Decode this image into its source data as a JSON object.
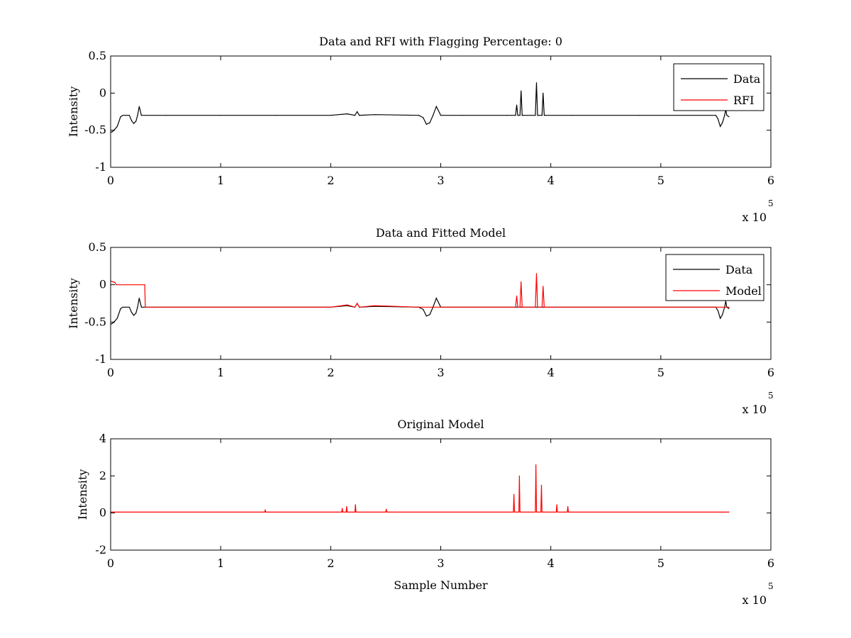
{
  "figure": {
    "background": "#ffffff",
    "axes_color": "#000000"
  },
  "chart_data": [
    {
      "type": "line",
      "title": "Data and RFI with Flagging Percentage: 0",
      "xlabel": "",
      "ylabel": "Intensity",
      "xlim": [
        0,
        600000
      ],
      "ylim": [
        -1,
        0.5
      ],
      "x_ticks": [
        0,
        100000,
        200000,
        300000,
        400000,
        500000,
        600000
      ],
      "x_tick_labels": [
        "0",
        "1",
        "2",
        "3",
        "4",
        "5",
        "6"
      ],
      "y_ticks": [
        -1,
        -0.5,
        0,
        0.5
      ],
      "y_tick_labels": [
        "-1",
        "-0.5",
        "0",
        "0.5"
      ],
      "x_multiplier": {
        "base": "x 10",
        "exponent": "5"
      },
      "grid": false,
      "legend": {
        "location": "top-right",
        "entries": [
          "Data",
          "RFI"
        ]
      },
      "series": [
        {
          "name": "Data",
          "color": "#000000",
          "x": [
            0,
            1500,
            3000,
            6000,
            9000,
            11000,
            14000,
            17000,
            19000,
            21000,
            23000,
            24500,
            26000,
            28000,
            50000,
            100000,
            150000,
            200000,
            215000,
            222000,
            224000,
            226000,
            240000,
            280000,
            284000,
            287000,
            290000,
            293000,
            296000,
            300000,
            320000,
            360000,
            368000,
            369000,
            370000,
            372000,
            373000,
            374000,
            375000,
            386000,
            387000,
            388000,
            389000,
            392000,
            393000,
            394000,
            395000,
            420000,
            480000,
            550000,
            552000,
            554000,
            556000,
            558000,
            559000,
            560000,
            562000
          ],
          "y": [
            -0.53,
            -0.52,
            -0.5,
            -0.45,
            -0.32,
            -0.3,
            -0.3,
            -0.3,
            -0.37,
            -0.41,
            -0.38,
            -0.3,
            -0.18,
            -0.3,
            -0.3,
            -0.3,
            -0.3,
            -0.3,
            -0.28,
            -0.3,
            -0.25,
            -0.3,
            -0.29,
            -0.3,
            -0.33,
            -0.42,
            -0.4,
            -0.3,
            -0.18,
            -0.3,
            -0.3,
            -0.3,
            -0.3,
            -0.16,
            -0.3,
            -0.3,
            0.03,
            -0.3,
            -0.3,
            -0.3,
            0.14,
            -0.3,
            -0.3,
            -0.3,
            0.0,
            -0.3,
            -0.3,
            -0.3,
            -0.3,
            -0.3,
            -0.35,
            -0.45,
            -0.4,
            -0.3,
            -0.22,
            -0.3,
            -0.32
          ]
        },
        {
          "name": "RFI",
          "color": "#ff0000",
          "x": [],
          "y": []
        }
      ]
    },
    {
      "type": "line",
      "title": "Data and Fitted Model",
      "xlabel": "",
      "ylabel": "Intensity",
      "xlim": [
        0,
        600000
      ],
      "ylim": [
        -1,
        0.5
      ],
      "x_ticks": [
        0,
        100000,
        200000,
        300000,
        400000,
        500000,
        600000
      ],
      "x_tick_labels": [
        "0",
        "1",
        "2",
        "3",
        "4",
        "5",
        "6"
      ],
      "y_ticks": [
        -1,
        -0.5,
        0,
        0.5
      ],
      "y_tick_labels": [
        "-1",
        "-0.5",
        "0",
        "0.5"
      ],
      "x_multiplier": {
        "base": "x 10",
        "exponent": "5"
      },
      "grid": false,
      "legend": {
        "location": "top-right",
        "entries": [
          "Data",
          "Model"
        ]
      },
      "series": [
        {
          "name": "Data",
          "color": "#000000",
          "x": [
            0,
            1500,
            3000,
            6000,
            9000,
            11000,
            14000,
            17000,
            19000,
            21000,
            23000,
            24500,
            26000,
            28000,
            50000,
            100000,
            150000,
            200000,
            215000,
            222000,
            224000,
            226000,
            240000,
            280000,
            284000,
            287000,
            290000,
            293000,
            296000,
            300000,
            320000,
            360000,
            420000,
            480000,
            550000,
            552000,
            554000,
            556000,
            558000,
            559000,
            560000,
            562000
          ],
          "y": [
            -0.53,
            -0.52,
            -0.5,
            -0.45,
            -0.32,
            -0.3,
            -0.3,
            -0.3,
            -0.37,
            -0.41,
            -0.38,
            -0.3,
            -0.18,
            -0.3,
            -0.3,
            -0.3,
            -0.3,
            -0.3,
            -0.28,
            -0.3,
            -0.25,
            -0.3,
            -0.29,
            -0.3,
            -0.33,
            -0.42,
            -0.4,
            -0.3,
            -0.18,
            -0.3,
            -0.3,
            -0.3,
            -0.3,
            -0.3,
            -0.3,
            -0.35,
            -0.45,
            -0.4,
            -0.3,
            -0.22,
            -0.3,
            -0.32
          ]
        },
        {
          "name": "Model",
          "color": "#ff0000",
          "x": [
            0,
            2000,
            4000,
            5000,
            31000,
            31500,
            50000,
            100000,
            150000,
            200000,
            215000,
            222000,
            224000,
            226000,
            240000,
            280000,
            300000,
            360000,
            368000,
            369000,
            370000,
            372000,
            373000,
            374000,
            375000,
            386000,
            387000,
            388000,
            389000,
            392000,
            393000,
            394000,
            395000,
            420000,
            480000,
            550000,
            562000
          ],
          "y": [
            0.05,
            0.04,
            0.03,
            0.0,
            0.0,
            -0.3,
            -0.3,
            -0.3,
            -0.3,
            -0.3,
            -0.27,
            -0.3,
            -0.25,
            -0.3,
            -0.28,
            -0.3,
            -0.3,
            -0.3,
            -0.3,
            -0.15,
            -0.3,
            -0.3,
            0.04,
            -0.3,
            -0.3,
            -0.3,
            0.15,
            -0.3,
            -0.3,
            -0.3,
            -0.02,
            -0.3,
            -0.3,
            -0.3,
            -0.3,
            -0.3,
            -0.3
          ]
        }
      ]
    },
    {
      "type": "line",
      "title": "Original Model",
      "xlabel": "Sample Number",
      "ylabel": "Intensity",
      "xlim": [
        0,
        600000
      ],
      "ylim": [
        -2,
        4
      ],
      "x_ticks": [
        0,
        100000,
        200000,
        300000,
        400000,
        500000,
        600000
      ],
      "x_tick_labels": [
        "0",
        "1",
        "2",
        "3",
        "4",
        "5",
        "6"
      ],
      "y_ticks": [
        -2,
        0,
        2,
        4
      ],
      "y_tick_labels": [
        "-2",
        "0",
        "2",
        "4"
      ],
      "x_multiplier": {
        "base": "x 10",
        "exponent": "5"
      },
      "grid": false,
      "legend": null,
      "series": [
        {
          "name": "",
          "color": "#ff0000",
          "x": [
            0,
            100000,
            140000,
            140500,
            141000,
            210000,
            210500,
            211000,
            214000,
            214500,
            215000,
            222000,
            222500,
            223000,
            250000,
            250500,
            251000,
            366000,
            366500,
            367000,
            371000,
            371500,
            372000,
            386000,
            386500,
            387000,
            391000,
            391500,
            392000,
            405000,
            405500,
            406000,
            415000,
            415500,
            416000,
            562000
          ],
          "y": [
            0.05,
            0.05,
            0.05,
            0.15,
            0.05,
            0.05,
            0.25,
            0.05,
            0.05,
            0.35,
            0.05,
            0.05,
            0.45,
            0.05,
            0.05,
            0.2,
            0.05,
            0.05,
            1.0,
            0.05,
            0.05,
            2.0,
            0.05,
            0.05,
            2.6,
            0.05,
            0.05,
            1.5,
            0.05,
            0.05,
            0.45,
            0.05,
            0.05,
            0.35,
            0.05,
            0.05
          ]
        }
      ]
    }
  ]
}
